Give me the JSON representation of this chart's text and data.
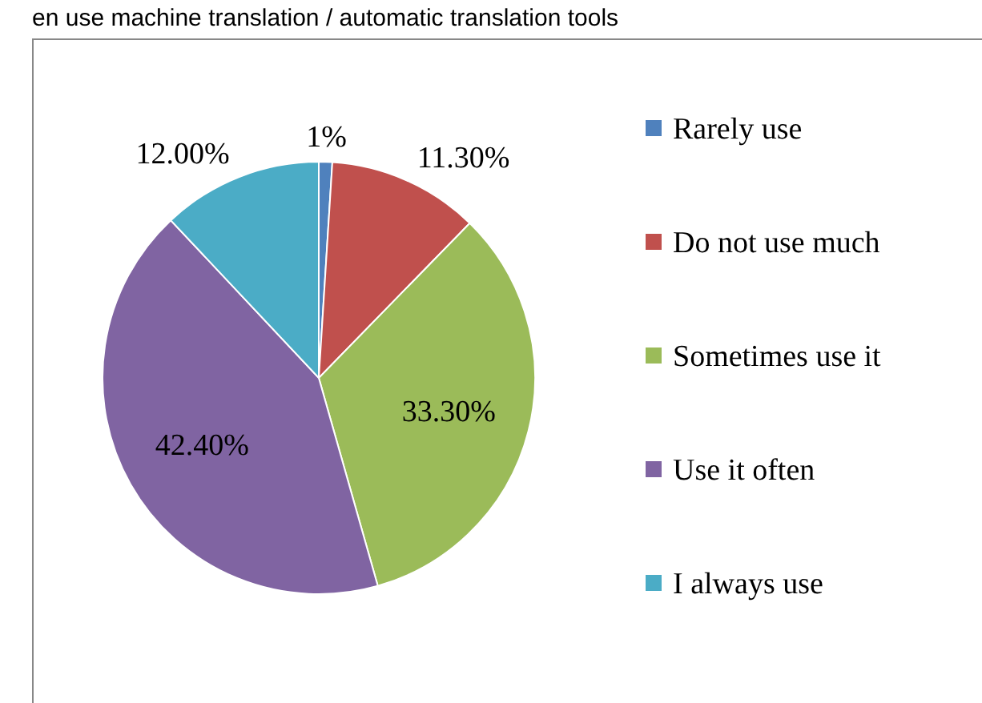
{
  "chart_data": {
    "type": "pie",
    "title": "en use machine translation / automatic translation  tools",
    "categories": [
      "Rarely use",
      "Do not use much",
      "Sometimes use it",
      "Use it often",
      "I always use"
    ],
    "values": [
      1,
      11.3,
      33.3,
      42.4,
      12
    ],
    "value_labels": [
      "1%",
      "11.30%",
      "33.30%",
      "42.40%",
      "12.00%"
    ],
    "colors": [
      "#4f81bd",
      "#c0504d",
      "#9bbb59",
      "#8064a2",
      "#4bacc6"
    ],
    "legend": "right"
  }
}
